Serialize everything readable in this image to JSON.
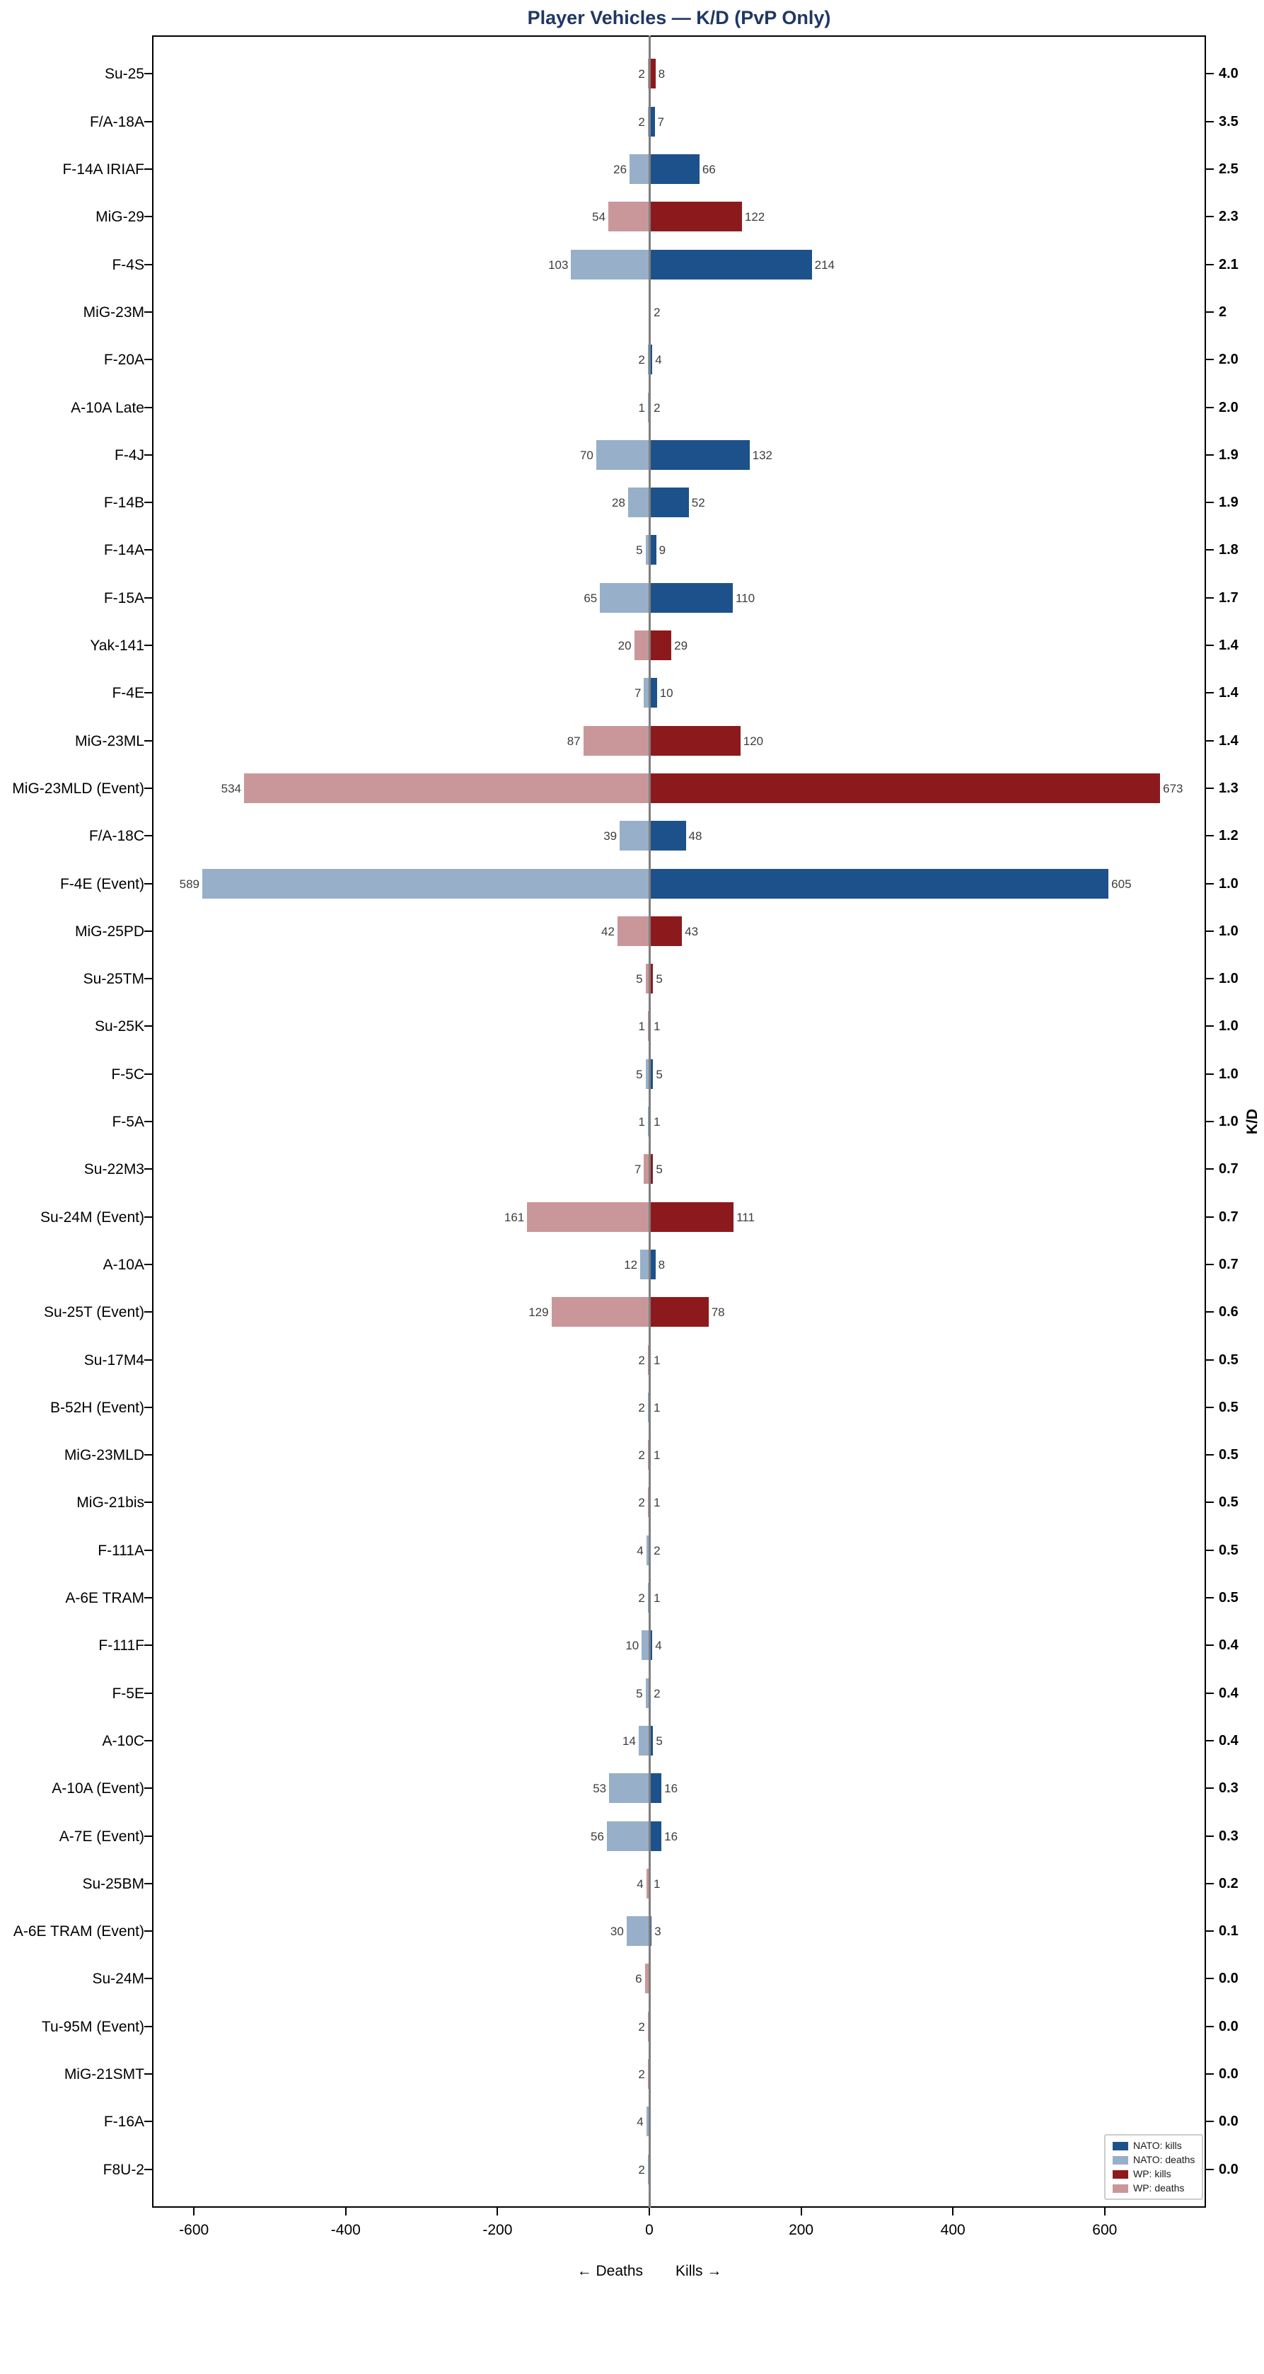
{
  "title": "Player Vehicles — K/D (PvP Only)",
  "axes": {
    "xlabel_deaths": "← Deaths",
    "xlabel_kills": "Kills →",
    "right_axis_label": "K/D",
    "x_tick_labels": [
      "-600",
      "-400",
      "-200",
      "0",
      "200",
      "400",
      "600"
    ]
  },
  "colors": {
    "nato_kills": "#1d518b",
    "nato_deaths": "#97afc9",
    "wp_kills": "#8c1a1d",
    "wp_deaths": "#c99799",
    "zero_line": "#7f7f7f",
    "title_text": "#1f3864",
    "value_label": "#3d3d3d"
  },
  "legend": {
    "items": [
      {
        "label": "NATO: kills",
        "color_key": "nato_kills"
      },
      {
        "label": "NATO: deaths",
        "color_key": "nato_deaths"
      },
      {
        "label": "WP: kills",
        "color_key": "wp_kills"
      },
      {
        "label": "WP: deaths",
        "color_key": "wp_deaths"
      }
    ]
  },
  "chart_data": {
    "type": "bar",
    "orientation": "diverging-horizontal",
    "title": "Player Vehicles — K/D (PvP Only)",
    "xlabel": "← Deaths      Kills →",
    "right_ylabel": "K/D",
    "xlim": [
      -652,
      736
    ],
    "x_ticks": [
      -600,
      -400,
      -200,
      0,
      200,
      400,
      600
    ],
    "grid": false,
    "legend_position": "lower right",
    "rows": [
      {
        "vehicle": "Su-25",
        "faction": "WP",
        "deaths": 2,
        "kills": 8,
        "kd": "4.0"
      },
      {
        "vehicle": "F/A-18A",
        "faction": "NATO",
        "deaths": 2,
        "kills": 7,
        "kd": "3.5"
      },
      {
        "vehicle": "F-14A IRIAF",
        "faction": "NATO",
        "deaths": 26,
        "kills": 66,
        "kd": "2.5"
      },
      {
        "vehicle": "MiG-29",
        "faction": "WP",
        "deaths": 54,
        "kills": 122,
        "kd": "2.3"
      },
      {
        "vehicle": "F-4S",
        "faction": "NATO",
        "deaths": 103,
        "kills": 214,
        "kd": "2.1"
      },
      {
        "vehicle": "MiG-23M",
        "faction": "WP",
        "deaths": 0,
        "kills": 2,
        "kd": "2"
      },
      {
        "vehicle": "F-20A",
        "faction": "NATO",
        "deaths": 2,
        "kills": 4,
        "kd": "2.0"
      },
      {
        "vehicle": "A-10A Late",
        "faction": "NATO",
        "deaths": 1,
        "kills": 2,
        "kd": "2.0"
      },
      {
        "vehicle": "F-4J",
        "faction": "NATO",
        "deaths": 70,
        "kills": 132,
        "kd": "1.9"
      },
      {
        "vehicle": "F-14B",
        "faction": "NATO",
        "deaths": 28,
        "kills": 52,
        "kd": "1.9"
      },
      {
        "vehicle": "F-14A",
        "faction": "NATO",
        "deaths": 5,
        "kills": 9,
        "kd": "1.8"
      },
      {
        "vehicle": "F-15A",
        "faction": "NATO",
        "deaths": 65,
        "kills": 110,
        "kd": "1.7"
      },
      {
        "vehicle": "Yak-141",
        "faction": "WP",
        "deaths": 20,
        "kills": 29,
        "kd": "1.4"
      },
      {
        "vehicle": "F-4E",
        "faction": "NATO",
        "deaths": 7,
        "kills": 10,
        "kd": "1.4"
      },
      {
        "vehicle": "MiG-23ML",
        "faction": "WP",
        "deaths": 87,
        "kills": 120,
        "kd": "1.4"
      },
      {
        "vehicle": "MiG-23MLD (Event)",
        "faction": "WP",
        "deaths": 534,
        "kills": 673,
        "kd": "1.3"
      },
      {
        "vehicle": "F/A-18C",
        "faction": "NATO",
        "deaths": 39,
        "kills": 48,
        "kd": "1.2"
      },
      {
        "vehicle": "F-4E (Event)",
        "faction": "NATO",
        "deaths": 589,
        "kills": 605,
        "kd": "1.0"
      },
      {
        "vehicle": "MiG-25PD",
        "faction": "WP",
        "deaths": 42,
        "kills": 43,
        "kd": "1.0"
      },
      {
        "vehicle": "Su-25TM",
        "faction": "WP",
        "deaths": 5,
        "kills": 5,
        "kd": "1.0"
      },
      {
        "vehicle": "Su-25K",
        "faction": "WP",
        "deaths": 1,
        "kills": 1,
        "kd": "1.0"
      },
      {
        "vehicle": "F-5C",
        "faction": "NATO",
        "deaths": 5,
        "kills": 5,
        "kd": "1.0"
      },
      {
        "vehicle": "F-5A",
        "faction": "NATO",
        "deaths": 1,
        "kills": 1,
        "kd": "1.0"
      },
      {
        "vehicle": "Su-22M3",
        "faction": "WP",
        "deaths": 7,
        "kills": 5,
        "kd": "0.7"
      },
      {
        "vehicle": "Su-24M (Event)",
        "faction": "WP",
        "deaths": 161,
        "kills": 111,
        "kd": "0.7"
      },
      {
        "vehicle": "A-10A",
        "faction": "NATO",
        "deaths": 12,
        "kills": 8,
        "kd": "0.7"
      },
      {
        "vehicle": "Su-25T (Event)",
        "faction": "WP",
        "deaths": 129,
        "kills": 78,
        "kd": "0.6"
      },
      {
        "vehicle": "Su-17M4",
        "faction": "WP",
        "deaths": 2,
        "kills": 1,
        "kd": "0.5"
      },
      {
        "vehicle": "B-52H (Event)",
        "faction": "NATO",
        "deaths": 2,
        "kills": 1,
        "kd": "0.5"
      },
      {
        "vehicle": "MiG-23MLD",
        "faction": "WP",
        "deaths": 2,
        "kills": 1,
        "kd": "0.5"
      },
      {
        "vehicle": "MiG-21bis",
        "faction": "WP",
        "deaths": 2,
        "kills": 1,
        "kd": "0.5"
      },
      {
        "vehicle": "F-111A",
        "faction": "NATO",
        "deaths": 4,
        "kills": 2,
        "kd": "0.5"
      },
      {
        "vehicle": "A-6E TRAM",
        "faction": "NATO",
        "deaths": 2,
        "kills": 1,
        "kd": "0.5"
      },
      {
        "vehicle": "F-111F",
        "faction": "NATO",
        "deaths": 10,
        "kills": 4,
        "kd": "0.4"
      },
      {
        "vehicle": "F-5E",
        "faction": "NATO",
        "deaths": 5,
        "kills": 2,
        "kd": "0.4"
      },
      {
        "vehicle": "A-10C",
        "faction": "NATO",
        "deaths": 14,
        "kills": 5,
        "kd": "0.4"
      },
      {
        "vehicle": "A-10A (Event)",
        "faction": "NATO",
        "deaths": 53,
        "kills": 16,
        "kd": "0.3"
      },
      {
        "vehicle": "A-7E (Event)",
        "faction": "NATO",
        "deaths": 56,
        "kills": 16,
        "kd": "0.3"
      },
      {
        "vehicle": "Su-25BM",
        "faction": "WP",
        "deaths": 4,
        "kills": 1,
        "kd": "0.2"
      },
      {
        "vehicle": "A-6E TRAM (Event)",
        "faction": "NATO",
        "deaths": 30,
        "kills": 3,
        "kd": "0.1"
      },
      {
        "vehicle": "Su-24M",
        "faction": "WP",
        "deaths": 6,
        "kills": 0,
        "kd": "0.0"
      },
      {
        "vehicle": "Tu-95M (Event)",
        "faction": "WP",
        "deaths": 2,
        "kills": 0,
        "kd": "0.0"
      },
      {
        "vehicle": "MiG-21SMT",
        "faction": "WP",
        "deaths": 2,
        "kills": 0,
        "kd": "0.0"
      },
      {
        "vehicle": "F-16A",
        "faction": "NATO",
        "deaths": 4,
        "kills": 0,
        "kd": "0.0"
      },
      {
        "vehicle": "F8U-2",
        "faction": "NATO",
        "deaths": 2,
        "kills": 0,
        "kd": "0.0"
      }
    ]
  }
}
